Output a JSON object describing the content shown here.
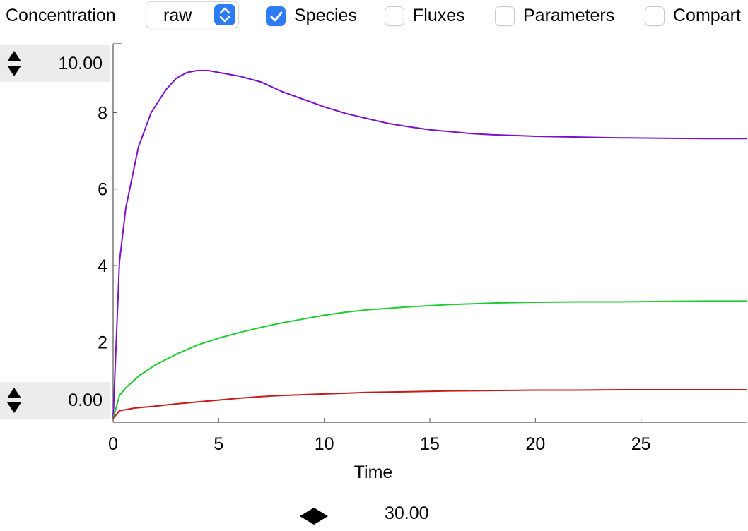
{
  "toolbar": {
    "concentration_label": "Concentration",
    "mode_select": {
      "value": "raw",
      "icon": "up-down-chevron-icon",
      "accent": "#2d7cf6"
    },
    "checkboxes": [
      {
        "label": "Species",
        "checked": true
      },
      {
        "label": "Fluxes",
        "checked": false
      },
      {
        "label": "Parameters",
        "checked": false
      },
      {
        "label": "Compart",
        "checked": false
      }
    ]
  },
  "y_max_spinner": {
    "value": "10.00"
  },
  "y_min_spinner": {
    "value": "0.00"
  },
  "time_slider": {
    "value": "30.00"
  },
  "chart_data": {
    "type": "line",
    "title": "",
    "xlabel": "Time",
    "ylabel": "",
    "xlim": [
      0,
      30
    ],
    "ylim": [
      -0.1,
      9.8
    ],
    "x_ticks": [
      "0",
      "5",
      "10",
      "15",
      "20",
      "25"
    ],
    "y_ticks": [
      "2",
      "4",
      "6",
      "8"
    ],
    "grid": false,
    "legend": "none",
    "series": [
      {
        "color": "#7b12c8",
        "x": [
          0,
          0.3,
          0.6,
          1.2,
          1.8,
          2.5,
          3,
          3.5,
          4,
          4.5,
          5,
          6,
          7,
          8,
          9,
          10,
          11,
          12,
          13,
          14,
          15,
          16,
          17,
          18,
          19,
          20,
          22,
          24,
          26,
          28,
          30
        ],
        "y": [
          0,
          4.1,
          5.5,
          7.1,
          8.0,
          8.6,
          8.9,
          9.05,
          9.1,
          9.1,
          9.05,
          8.95,
          8.8,
          8.55,
          8.35,
          8.15,
          7.98,
          7.85,
          7.72,
          7.63,
          7.55,
          7.5,
          7.45,
          7.42,
          7.4,
          7.38,
          7.36,
          7.34,
          7.33,
          7.32,
          7.32
        ]
      },
      {
        "color": "#1fcc2e",
        "x": [
          0,
          0.3,
          0.6,
          1.2,
          2,
          3,
          4,
          5,
          6,
          7,
          8,
          9,
          10,
          11,
          12,
          13,
          14,
          15,
          16,
          17,
          18,
          19,
          20,
          22,
          24,
          26,
          28,
          30
        ],
        "y": [
          0,
          0.6,
          0.8,
          1.1,
          1.4,
          1.68,
          1.92,
          2.1,
          2.25,
          2.38,
          2.5,
          2.6,
          2.7,
          2.78,
          2.84,
          2.88,
          2.92,
          2.95,
          2.98,
          3.0,
          3.02,
          3.03,
          3.04,
          3.05,
          3.05,
          3.06,
          3.07,
          3.07
        ]
      },
      {
        "color": "#c41a1a",
        "x": [
          0,
          0.3,
          1,
          2,
          3,
          4,
          5,
          6,
          7,
          8,
          9,
          10,
          11,
          12,
          14,
          16,
          18,
          20,
          22,
          24,
          26,
          28,
          30
        ],
        "y": [
          0,
          0.2,
          0.27,
          0.32,
          0.38,
          0.43,
          0.48,
          0.53,
          0.57,
          0.6,
          0.62,
          0.64,
          0.66,
          0.68,
          0.7,
          0.72,
          0.73,
          0.74,
          0.74,
          0.75,
          0.75,
          0.75,
          0.75
        ]
      }
    ]
  }
}
